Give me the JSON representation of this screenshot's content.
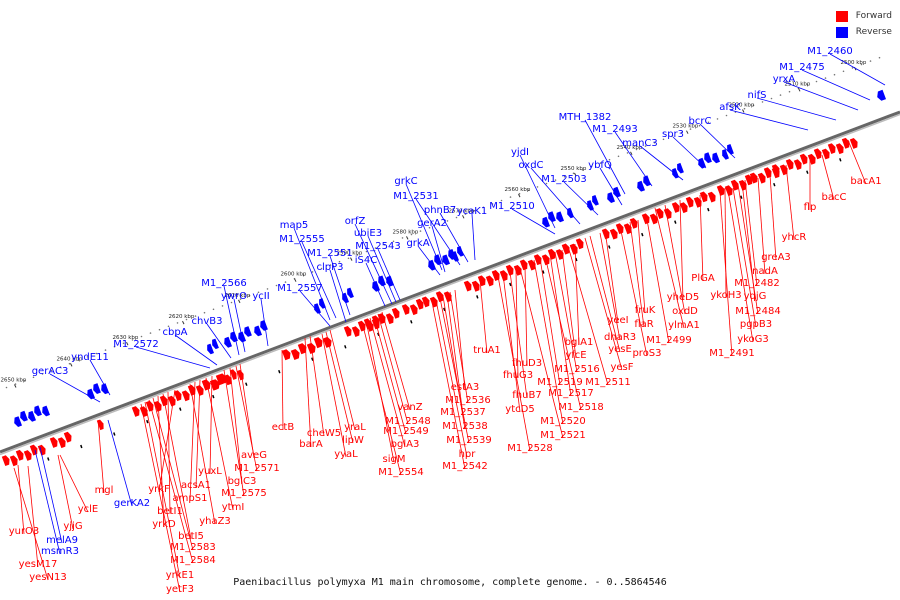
{
  "legend": {
    "forward_label": "Forward",
    "reverse_label": "Reverse",
    "forward_color": "#ff0000",
    "reverse_color": "#0000ff"
  },
  "caption": "Paenibacillus polymyxa M1 main chromosome, complete genome. - 0..5864546",
  "scale": {
    "unit": "kbp",
    "ticks": [
      2500,
      2510,
      2520,
      2530,
      2540,
      2550,
      2560,
      2570,
      2580,
      2590,
      2600,
      2610,
      2620,
      2630,
      2640,
      2650
    ]
  },
  "reverse_labels": [
    "M1_2460",
    "M1_2475",
    "yrxA",
    "nifS",
    "afsK",
    "bcrC",
    "spr3",
    "manC3",
    "M1_2493",
    "MTH_1382",
    "ybfQ",
    "M1_2503",
    "oxdC",
    "yjdI",
    "M1_2510",
    "ycaK1",
    "phnB7",
    "M1_2531",
    "grkC",
    "gerA2",
    "grkA",
    "M1_2543",
    "ubiE3",
    "orfZ",
    "iS4C",
    "M1_2551",
    "M1_2555",
    "map5",
    "clpP3",
    "M1_2557",
    "ycII",
    "ywrO",
    "M1_2566",
    "chvB3",
    "cbpA",
    "M1_2572",
    "yndE11",
    "gerAC3",
    "melA9",
    "msmR3",
    "gerKA2"
  ],
  "forward_labels": [
    "bacA1",
    "bacC",
    "flp",
    "yhcR",
    "greA3",
    "nadA",
    "M1_2482",
    "yqjG",
    "M1_2484",
    "ykoH3",
    "PlGA",
    "pgpB3",
    "yheD5",
    "ykoG3",
    "oxdD",
    "M1_2491",
    "ylmA1",
    "fruK",
    "M1_2499",
    "flaR",
    "yeeI",
    "proS3",
    "dhaR3",
    "yesE",
    "yesF",
    "bglA1",
    "M1_2511",
    "yfcE",
    "M1_2516",
    "M1_2517",
    "M1_2518",
    "M1_2519",
    "M1_2520",
    "truA1",
    "fhuD3",
    "M1_2521",
    "fhuG3",
    "fhuB7",
    "ytcD5",
    "M1_2528",
    "estA3",
    "M1_2536",
    "M1_2537",
    "M1_2538",
    "M1_2539",
    "hpr",
    "M1_2542",
    "vanZ",
    "M1_2548",
    "M1_2549",
    "bglA3",
    "sigM",
    "M1_2554",
    "yraL",
    "lipW",
    "yyaL",
    "cheW5",
    "barA",
    "ectB",
    "aveG",
    "M1_2571",
    "bglC3",
    "M1_2575",
    "yuxL",
    "ytmI",
    "acsA1",
    "ampS1",
    "yhaZ3",
    "yrkF",
    "betI1",
    "betI5",
    "yrkD",
    "M1_2583",
    "M1_2584",
    "yrkE1",
    "yetF3",
    "mgl",
    "yclE",
    "yjjG",
    "yurO3",
    "yesM17",
    "yesN13"
  ]
}
